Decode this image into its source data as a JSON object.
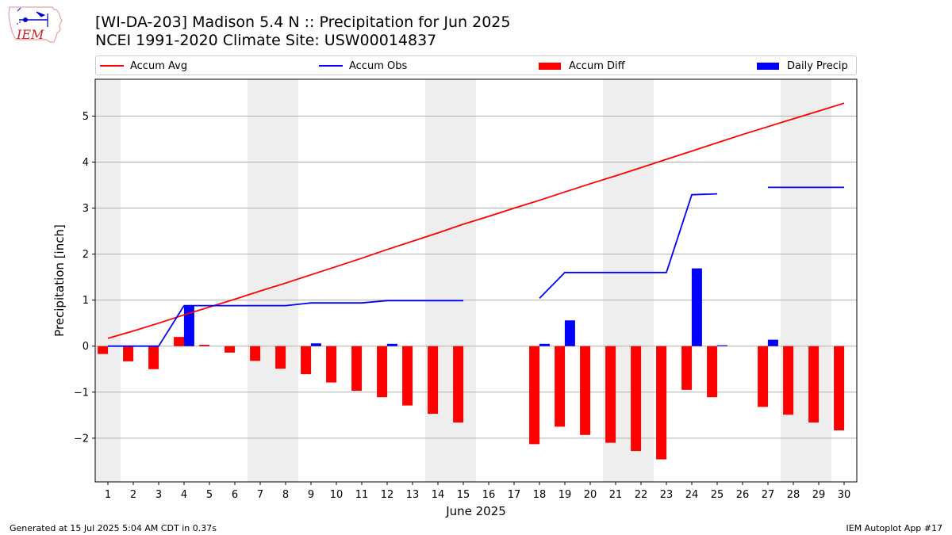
{
  "logo": {
    "text": "IEM",
    "name": "iem-logo"
  },
  "title": {
    "line1": "[WI-DA-203] Madison 5.4 N :: Precipitation for Jun 2025",
    "line2": "NCEI 1991-2020 Climate Site: USW00014837"
  },
  "legend": [
    {
      "label": "Accum Avg",
      "kind": "line",
      "color": "#ff0000"
    },
    {
      "label": "Accum Obs",
      "kind": "line",
      "color": "#0000ff"
    },
    {
      "label": "Accum Diff",
      "kind": "box",
      "color": "#ff0000"
    },
    {
      "label": "Daily Precip",
      "kind": "box",
      "color": "#0000ff"
    }
  ],
  "footer": {
    "left": "Generated at 15 Jul 2025 5:04 AM CDT in 0.37s",
    "right": "IEM Autoplot App #17"
  },
  "chart_data": {
    "type": "bar",
    "xlabel": "June 2025",
    "ylabel": "Precipitation [inch]",
    "xlim": [
      0.5,
      30.5
    ],
    "ylim": [
      -2.95,
      5.8
    ],
    "yticks": [
      -2,
      -1,
      0,
      1,
      2,
      3,
      4,
      5
    ],
    "ytick_labels": [
      "−2",
      "−1",
      "0",
      "1",
      "2",
      "3",
      "4",
      "5"
    ],
    "days": [
      1,
      2,
      3,
      4,
      5,
      6,
      7,
      8,
      9,
      10,
      11,
      12,
      13,
      14,
      15,
      16,
      17,
      18,
      19,
      20,
      21,
      22,
      23,
      24,
      25,
      26,
      27,
      28,
      29,
      30
    ],
    "weekend_shading": [
      [
        0.5,
        1.5
      ],
      [
        6.5,
        8.5
      ],
      [
        13.5,
        15.5
      ],
      [
        20.5,
        22.5
      ],
      [
        27.5,
        29.5
      ]
    ],
    "weekend_color": "#eeeeee",
    "grid": "y",
    "series": [
      {
        "name": "Accum Avg",
        "kind": "line",
        "color": "#ff0000",
        "values": [
          0.17,
          0.33,
          0.5,
          0.68,
          0.85,
          1.02,
          1.2,
          1.37,
          1.55,
          1.73,
          1.91,
          2.1,
          2.28,
          2.46,
          2.65,
          2.82,
          3.0,
          3.17,
          3.35,
          3.53,
          3.7,
          3.88,
          4.06,
          4.24,
          4.42,
          4.6,
          4.77,
          4.94,
          5.11,
          5.28
        ]
      },
      {
        "name": "Accum Obs",
        "kind": "line",
        "color": "#0000ff",
        "values": [
          0.0,
          0.0,
          0.0,
          0.88,
          0.88,
          0.88,
          0.88,
          0.88,
          0.94,
          0.94,
          0.94,
          0.99,
          0.99,
          0.99,
          0.99,
          null,
          null,
          1.04,
          1.6,
          1.6,
          1.6,
          1.6,
          1.6,
          3.29,
          3.31,
          null,
          3.45,
          3.45,
          3.45,
          3.45
        ]
      },
      {
        "name": "Accum Diff",
        "kind": "bar",
        "color": "#ff0000",
        "offset": -0.2,
        "values": [
          -0.17,
          -0.33,
          -0.5,
          0.2,
          0.03,
          -0.14,
          -0.32,
          -0.49,
          -0.61,
          -0.79,
          -0.97,
          -1.11,
          -1.29,
          -1.47,
          -1.66,
          null,
          null,
          -2.13,
          -1.75,
          -1.93,
          -2.1,
          -2.28,
          -2.46,
          -0.95,
          -1.11,
          null,
          -1.32,
          -1.49,
          -1.66,
          -1.83
        ]
      },
      {
        "name": "Daily Precip",
        "kind": "bar",
        "color": "#0000ff",
        "offset": 0.2,
        "values": [
          0,
          0,
          0,
          0.88,
          0,
          0,
          0,
          0,
          0.06,
          0,
          0,
          0.05,
          0,
          0,
          0,
          null,
          null,
          0.05,
          0.56,
          0,
          0,
          0,
          0,
          1.69,
          0.02,
          null,
          0.14,
          0,
          0,
          0
        ]
      }
    ]
  }
}
